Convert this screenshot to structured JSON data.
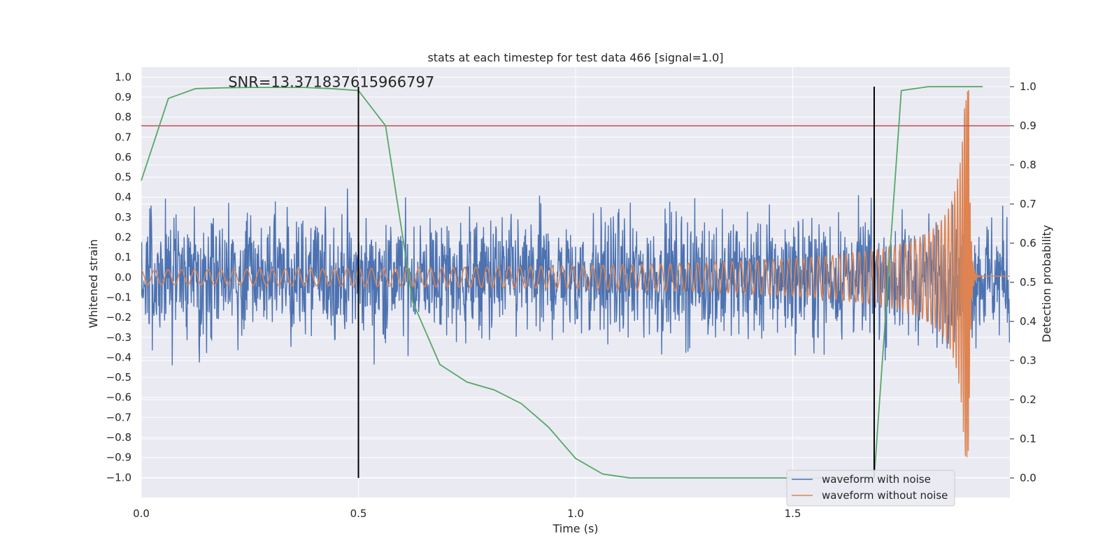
{
  "chart_data": {
    "type": "line",
    "title": "stats at each timestep for test data 466 [signal=1.0]",
    "xlabel": "Time (s)",
    "ylabel": "Whitened strain",
    "y2label": "Detection probability",
    "xlim": [
      0.0,
      2.0
    ],
    "ylim": [
      -1.1,
      1.05
    ],
    "y2lim": [
      -0.05,
      1.05
    ],
    "xticks": [
      0.0,
      0.5,
      1.0,
      1.5
    ],
    "xtick_labels": [
      "0.0",
      "0.5",
      "1.0",
      "1.5"
    ],
    "yticks": [
      1.0,
      0.9,
      0.8,
      0.7,
      0.6,
      0.5,
      0.4,
      0.3,
      0.2,
      0.1,
      0.0,
      -0.1,
      -0.2,
      -0.3,
      -0.4,
      -0.5,
      -0.6,
      -0.7,
      -0.8,
      -0.9,
      -1.0
    ],
    "ytick_labels": [
      "1.0",
      "0.9",
      "0.8",
      "0.7",
      "0.6",
      "0.5",
      "0.4",
      "0.3",
      "0.2",
      "0.1",
      "0.0",
      "−0.1",
      "−0.2",
      "−0.3",
      "−0.4",
      "−0.5",
      "−0.6",
      "−0.7",
      "−0.8",
      "−0.9",
      "−1.0"
    ],
    "y2ticks": [
      1.0,
      0.9,
      0.8,
      0.7,
      0.6,
      0.5,
      0.4,
      0.3,
      0.2,
      0.1,
      0.0
    ],
    "y2tick_labels": [
      "1.0",
      "0.9",
      "0.8",
      "0.7",
      "0.6",
      "0.5",
      "0.4",
      "0.3",
      "0.2",
      "0.1",
      "0.0"
    ],
    "annotation": "SNR=13.371837615966797",
    "annotation_pos": [
      0.2,
      0.95
    ],
    "grid": true,
    "legend_loc": "lower right",
    "series": [
      {
        "name": "waveform with noise",
        "color": "#4c72b0",
        "kind": "noise",
        "amplitude": 0.95,
        "samples": 2048,
        "seed": 466
      },
      {
        "name": "waveform without noise",
        "color": "#dd8452",
        "kind": "chirp",
        "merger_time": 1.905,
        "freq_start": 32,
        "freq_end": 110,
        "amp_start": 0.037,
        "amp_peak": 0.93
      }
    ],
    "probability_series": {
      "color": "#55a868",
      "x": [
        0.0,
        0.0625,
        0.125,
        0.1875,
        0.25,
        0.3125,
        0.375,
        0.4375,
        0.5,
        0.5625,
        0.625,
        0.6875,
        0.75,
        0.8125,
        0.875,
        0.9375,
        1.0,
        1.0625,
        1.125,
        1.1875,
        1.25,
        1.3125,
        1.375,
        1.4375,
        1.5,
        1.5625,
        1.625,
        1.6875,
        1.75,
        1.8125,
        1.875,
        1.9375
      ],
      "y": [
        0.76,
        0.97,
        0.995,
        0.997,
        0.998,
        0.998,
        0.998,
        0.995,
        0.99,
        0.9,
        0.45,
        0.29,
        0.245,
        0.225,
        0.19,
        0.13,
        0.05,
        0.01,
        0.0,
        0.0,
        0.0,
        0.0,
        0.0,
        0.0,
        0.0,
        0.0,
        0.0,
        0.0,
        0.99,
        1.0,
        1.0,
        1.0
      ]
    },
    "threshold": {
      "y2": 0.9,
      "color": "#c44e52"
    },
    "vlines": [
      {
        "x": 0.5,
        "y2_from": 0.0,
        "y2_to": 1.0
      },
      {
        "x": 1.6875,
        "y2_from": 0.0,
        "y2_to": 1.0
      }
    ]
  }
}
